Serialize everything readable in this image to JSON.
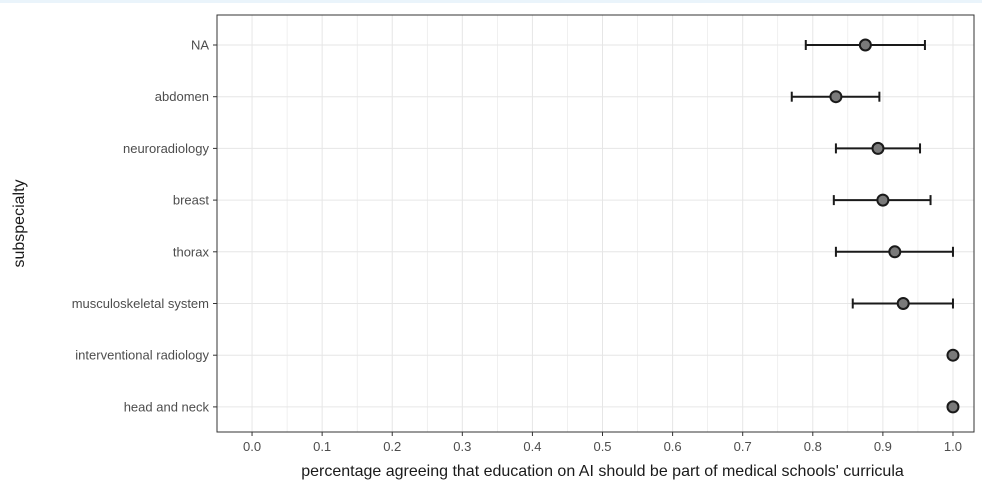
{
  "chart_data": {
    "type": "scatter",
    "xlabel": "percentage agreeing that education on AI should be part of medical schools' curricula",
    "ylabel": "subspecialty",
    "xlim": [
      -0.05,
      1.03
    ],
    "x_ticks": [
      "0.0",
      "0.1",
      "0.2",
      "0.3",
      "0.4",
      "0.5",
      "0.6",
      "0.7",
      "0.8",
      "0.9",
      "1.0"
    ],
    "grid": true,
    "categories": [
      "NA",
      "abdomen",
      "neuroradiology",
      "breast",
      "thorax",
      "musculoskeletal system",
      "interventional radiology",
      "head and neck"
    ],
    "points": [
      {
        "category": "NA",
        "estimate": 0.875,
        "lower": 0.79,
        "upper": 0.96
      },
      {
        "category": "abdomen",
        "estimate": 0.833,
        "lower": 0.77,
        "upper": 0.895
      },
      {
        "category": "neuroradiology",
        "estimate": 0.893,
        "lower": 0.833,
        "upper": 0.953
      },
      {
        "category": "breast",
        "estimate": 0.9,
        "lower": 0.83,
        "upper": 0.968
      },
      {
        "category": "thorax",
        "estimate": 0.917,
        "lower": 0.833,
        "upper": 1.0
      },
      {
        "category": "musculoskeletal system",
        "estimate": 0.929,
        "lower": 0.857,
        "upper": 1.0
      },
      {
        "category": "interventional radiology",
        "estimate": 1.0,
        "lower": 1.0,
        "upper": 1.0
      },
      {
        "category": "head and neck",
        "estimate": 1.0,
        "lower": 1.0,
        "upper": 1.0
      }
    ],
    "colors": {
      "panel_border": "#333333",
      "grid": "#e6e6e6",
      "errorbar": "#1a1a1a",
      "point_fill": "#7a7a7a",
      "point_stroke": "#1a1a1a"
    }
  }
}
